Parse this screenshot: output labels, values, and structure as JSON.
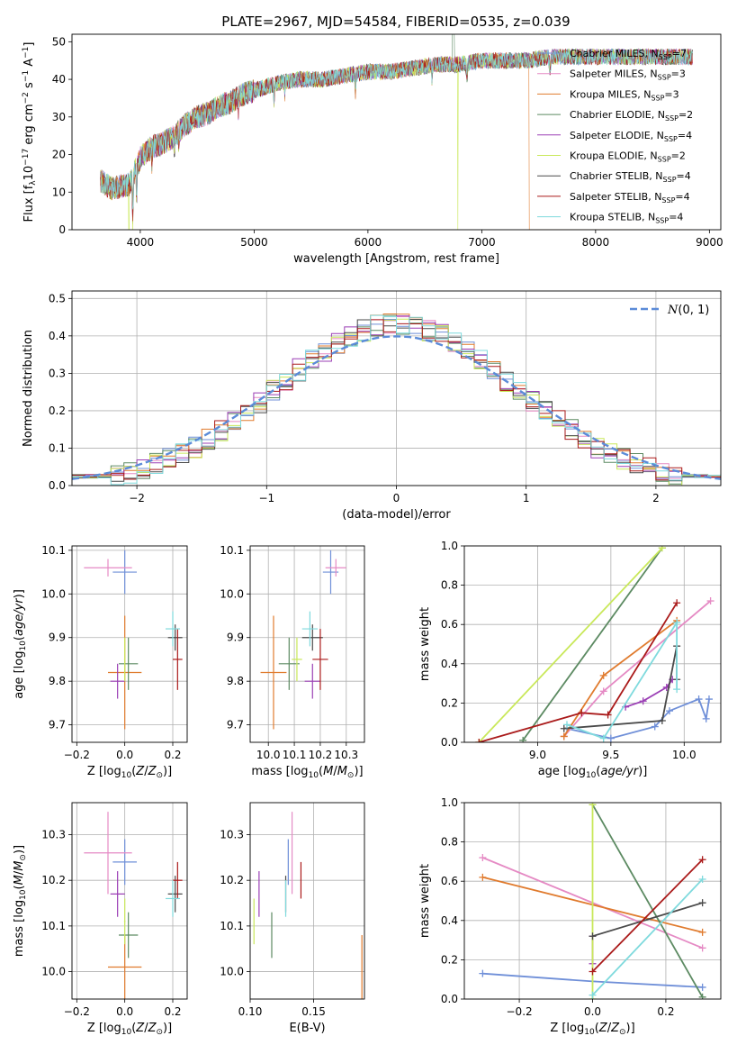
{
  "figure": {
    "title": "PLATE=2967, MJD=54584, FIBERID=0535, z=0.039",
    "colors": [
      "#6f8fd8",
      "#e58ac4",
      "#e07b2e",
      "#5c8a62",
      "#9b3fb5",
      "#c9e85a",
      "#4a4a4a",
      "#aa1a1a",
      "#7fdadd"
    ]
  },
  "models": [
    {
      "name": "Chabrier MILES, N",
      "sub": "SSP",
      "eq": "=7",
      "color": "#6f8fd8"
    },
    {
      "name": "Salpeter MILES, N",
      "sub": "SSP",
      "eq": "=3",
      "color": "#e58ac4"
    },
    {
      "name": "Kroupa MILES, N",
      "sub": "SSP",
      "eq": "=3",
      "color": "#e07b2e"
    },
    {
      "name": "Chabrier ELODIE, N",
      "sub": "SSP",
      "eq": "=2",
      "color": "#5c8a62"
    },
    {
      "name": "Salpeter ELODIE, N",
      "sub": "SSP",
      "eq": "=4",
      "color": "#9b3fb5"
    },
    {
      "name": "Kroupa ELODIE, N",
      "sub": "SSP",
      "eq": "=2",
      "color": "#c9e85a"
    },
    {
      "name": "Chabrier STELIB, N",
      "sub": "SSP",
      "eq": "=4",
      "color": "#4a4a4a"
    },
    {
      "name": "Salpeter STELIB, N",
      "sub": "SSP",
      "eq": "=4",
      "color": "#aa1a1a"
    },
    {
      "name": "Kroupa STELIB, N",
      "sub": "SSP",
      "eq": "=4",
      "color": "#7fdadd"
    }
  ],
  "chart_data": [
    {
      "id": "spectrum",
      "type": "line",
      "xlabel": "wavelength [Angstrom, rest frame]",
      "ylabel": "Flux [f_λ10^-17 erg cm^-2 s^-1 A^-1]",
      "xlim": [
        3400,
        9100
      ],
      "ylim": [
        0,
        52
      ],
      "xticks": [
        4000,
        5000,
        6000,
        7000,
        8000,
        9000
      ],
      "yticks": [
        0,
        10,
        20,
        30,
        40,
        50
      ],
      "legend": "right",
      "grid": false,
      "continuum": {
        "x": [
          3650,
          3750,
          3900,
          4000,
          4100,
          4200,
          4300,
          4400,
          4500,
          4600,
          4700,
          4800,
          4900,
          5000,
          5200,
          5400,
          5600,
          5800,
          6000,
          6200,
          6400,
          6600,
          6800,
          7000,
          7200,
          7400,
          7600,
          7800,
          8000,
          8200,
          8400,
          8600,
          8850
        ],
        "y": [
          13,
          11,
          12,
          19,
          22,
          23,
          25,
          28,
          30,
          31,
          33,
          34,
          36,
          37,
          39,
          40,
          40,
          41,
          42,
          42,
          43,
          44,
          44,
          45,
          45,
          45,
          46,
          46,
          46,
          46,
          46,
          46,
          46
        ]
      },
      "x_range": [
        3650,
        8850
      ],
      "drops": [
        {
          "series": 5,
          "x": 3900
        },
        {
          "series": 5,
          "x": 6790
        },
        {
          "series": 2,
          "x": 7420
        }
      ]
    },
    {
      "id": "residual-histogram",
      "type": "histogram",
      "xlabel": "(data-model)/error",
      "ylabel": "Normed distribution",
      "xlim": [
        -2.5,
        2.5
      ],
      "ylim": [
        0,
        0.52
      ],
      "xticks": [
        -2,
        -1,
        0,
        1,
        2
      ],
      "yticks": [
        0.0,
        0.1,
        0.2,
        0.3,
        0.4,
        0.5
      ],
      "grid": true,
      "bin_width": 0.1,
      "reference": {
        "label": "N(0,1)",
        "mean": 0,
        "sigma": 1,
        "style": "dashed",
        "color": "#5b8bd8"
      }
    },
    {
      "id": "age-vs-Z",
      "type": "errorbar",
      "xlabel": "Z [log10(Z/Z⊙)]",
      "ylabel": "age [log10(age/yr)]",
      "xlim": [
        -0.22,
        0.26
      ],
      "ylim": [
        9.66,
        10.11
      ],
      "xticks": [
        -0.2,
        0.0,
        0.2
      ],
      "yticks": [
        9.7,
        9.8,
        9.9,
        10.0,
        10.1
      ],
      "grid": true,
      "points": [
        {
          "series": 0,
          "x": 0.0,
          "xerr": 0.05,
          "y": 10.05,
          "yerr": 0.05
        },
        {
          "series": 1,
          "x": -0.07,
          "xerr": 0.1,
          "y": 10.06,
          "yerr": 0.02
        },
        {
          "series": 2,
          "x": 0.0,
          "xerr": 0.07,
          "y": 9.82,
          "yerr": 0.13
        },
        {
          "series": 3,
          "x": 0.015,
          "xerr": 0.04,
          "y": 9.84,
          "yerr": 0.06
        },
        {
          "series": 4,
          "x": -0.03,
          "xerr": 0.03,
          "y": 9.8,
          "yerr": 0.04
        },
        {
          "series": 5,
          "x": 0.0,
          "xerr": 0.003,
          "y": 9.85,
          "yerr": 0.05
        },
        {
          "series": 6,
          "x": 0.21,
          "xerr": 0.03,
          "y": 9.9,
          "yerr": 0.03
        },
        {
          "series": 7,
          "x": 0.22,
          "xerr": 0.02,
          "y": 9.85,
          "yerr": 0.07
        },
        {
          "series": 8,
          "x": 0.2,
          "xerr": 0.03,
          "y": 9.92,
          "yerr": 0.04
        }
      ]
    },
    {
      "id": "age-vs-mass",
      "type": "errorbar",
      "xlabel": "mass [log10(M/M⊙)]",
      "ylabel": "",
      "xlim": [
        9.93,
        10.37
      ],
      "ylim": [
        9.66,
        10.11
      ],
      "xticks": [
        10.0,
        10.1,
        10.2,
        10.3
      ],
      "yticks": [
        9.7,
        9.8,
        9.9,
        10.0,
        10.1
      ],
      "grid": true,
      "points": [
        {
          "series": 0,
          "x": 10.24,
          "xerr": 0.03,
          "y": 10.05,
          "yerr": 0.05
        },
        {
          "series": 1,
          "x": 10.26,
          "xerr": 0.04,
          "y": 10.06,
          "yerr": 0.02
        },
        {
          "series": 2,
          "x": 10.02,
          "xerr": 0.05,
          "y": 9.82,
          "yerr": 0.13
        },
        {
          "series": 3,
          "x": 10.08,
          "xerr": 0.04,
          "y": 9.84,
          "yerr": 0.06
        },
        {
          "series": 4,
          "x": 10.17,
          "xerr": 0.03,
          "y": 9.8,
          "yerr": 0.04
        },
        {
          "series": 5,
          "x": 10.11,
          "xerr": 0.02,
          "y": 9.85,
          "yerr": 0.05
        },
        {
          "series": 6,
          "x": 10.17,
          "xerr": 0.04,
          "y": 9.9,
          "yerr": 0.03
        },
        {
          "series": 7,
          "x": 10.2,
          "xerr": 0.03,
          "y": 9.85,
          "yerr": 0.07
        },
        {
          "series": 8,
          "x": 10.16,
          "xerr": 0.03,
          "y": 9.92,
          "yerr": 0.04
        }
      ]
    },
    {
      "id": "mass-weight-vs-age",
      "type": "line",
      "xlabel": "age [log10(age/yr)]",
      "ylabel": "mass weight",
      "xlim": [
        8.5,
        10.25
      ],
      "ylim": [
        0.0,
        1.0
      ],
      "xticks": [
        9.0,
        9.5,
        10.0
      ],
      "yticks": [
        0.0,
        0.2,
        0.4,
        0.6,
        0.8,
        1.0
      ],
      "grid": true,
      "series": [
        {
          "series": 0,
          "x": [
            9.2,
            9.5,
            9.8,
            9.9,
            10.1,
            10.15,
            10.17
          ],
          "y": [
            0.07,
            0.02,
            0.08,
            0.16,
            0.22,
            0.12,
            0.22
          ]
        },
        {
          "series": 1,
          "x": [
            9.18,
            9.45,
            10.18
          ],
          "y": [
            0.03,
            0.26,
            0.72
          ]
        },
        {
          "series": 2,
          "x": [
            9.18,
            9.45,
            9.95
          ],
          "y": [
            0.03,
            0.34,
            0.62
          ]
        },
        {
          "series": 3,
          "x": [
            8.9,
            9.85
          ],
          "y": [
            0.01,
            0.99
          ]
        },
        {
          "series": 4,
          "x": [
            9.6,
            9.72,
            9.88,
            9.92
          ],
          "y": [
            0.18,
            0.21,
            0.28,
            0.32
          ]
        },
        {
          "series": 5,
          "x": [
            8.6,
            9.85
          ],
          "y": [
            0.0,
            0.99
          ]
        },
        {
          "series": 6,
          "x": [
            9.18,
            9.85,
            9.95,
            9.95
          ],
          "y": [
            0.07,
            0.11,
            0.49,
            0.32
          ]
        },
        {
          "series": 7,
          "x": [
            8.6,
            9.3,
            9.48,
            9.95
          ],
          "y": [
            0.0,
            0.15,
            0.14,
            0.71
          ]
        },
        {
          "series": 8,
          "x": [
            9.2,
            9.45,
            9.95,
            9.95
          ],
          "y": [
            0.09,
            0.02,
            0.61,
            0.27
          ]
        }
      ]
    },
    {
      "id": "mass-vs-Z",
      "type": "errorbar",
      "xlabel": "Z [log10(Z/Z⊙)]",
      "ylabel": "mass [log10(M/M⊙)]",
      "xlim": [
        -0.22,
        0.26
      ],
      "ylim": [
        9.94,
        10.37
      ],
      "xticks": [
        -0.2,
        0.0,
        0.2
      ],
      "yticks": [
        10.0,
        10.1,
        10.2,
        10.3
      ],
      "grid": true,
      "points": [
        {
          "series": 0,
          "x": 0.0,
          "xerr": 0.05,
          "y": 10.24,
          "yerr": 0.05
        },
        {
          "series": 1,
          "x": -0.07,
          "xerr": 0.1,
          "y": 10.26,
          "yerr": 0.09
        },
        {
          "series": 2,
          "x": 0.0,
          "xerr": 0.07,
          "y": 10.01,
          "yerr": 0.07
        },
        {
          "series": 3,
          "x": 0.015,
          "xerr": 0.04,
          "y": 10.08,
          "yerr": 0.05
        },
        {
          "series": 4,
          "x": -0.03,
          "xerr": 0.03,
          "y": 10.17,
          "yerr": 0.05
        },
        {
          "series": 5,
          "x": 0.0,
          "xerr": 0.003,
          "y": 10.11,
          "yerr": 0.05
        },
        {
          "series": 6,
          "x": 0.21,
          "xerr": 0.03,
          "y": 10.17,
          "yerr": 0.04
        },
        {
          "series": 7,
          "x": 0.22,
          "xerr": 0.02,
          "y": 10.2,
          "yerr": 0.04
        },
        {
          "series": 8,
          "x": 0.2,
          "xerr": 0.03,
          "y": 10.16,
          "yerr": 0.04
        }
      ]
    },
    {
      "id": "mass-vs-EBV",
      "type": "errorbar",
      "xlabel": "E(B-V)",
      "ylabel": "",
      "xlim": [
        0.1,
        0.19
      ],
      "ylim": [
        9.94,
        10.37
      ],
      "xticks": [
        0.1,
        0.15
      ],
      "yticks": [
        10.0,
        10.1,
        10.2,
        10.3
      ],
      "grid": true,
      "points": [
        {
          "series": 0,
          "x": 0.13,
          "xerr": 0,
          "y": 10.24,
          "yerr": 0.05
        },
        {
          "series": 1,
          "x": 0.133,
          "xerr": 0,
          "y": 10.26,
          "yerr": 0.09
        },
        {
          "series": 2,
          "x": 0.188,
          "xerr": 0,
          "y": 10.01,
          "yerr": 0.07
        },
        {
          "series": 3,
          "x": 0.117,
          "xerr": 0,
          "y": 10.08,
          "yerr": 0.05
        },
        {
          "series": 4,
          "x": 0.107,
          "xerr": 0,
          "y": 10.17,
          "yerr": 0.05
        },
        {
          "series": 5,
          "x": 0.103,
          "xerr": 0,
          "y": 10.11,
          "yerr": 0.05
        },
        {
          "series": 6,
          "x": 0.128,
          "xerr": 0,
          "y": 10.17,
          "yerr": 0.04
        },
        {
          "series": 7,
          "x": 0.14,
          "xerr": 0,
          "y": 10.2,
          "yerr": 0.04
        },
        {
          "series": 8,
          "x": 0.128,
          "xerr": 0,
          "y": 10.16,
          "yerr": 0.04
        }
      ]
    },
    {
      "id": "mass-weight-vs-Z",
      "type": "line",
      "xlabel": "Z [log10(Z/Z⊙)]",
      "ylabel": "mass weight",
      "xlim": [
        -0.35,
        0.35
      ],
      "ylim": [
        0.0,
        1.0
      ],
      "xticks": [
        -0.2,
        0.0,
        0.2
      ],
      "yticks": [
        0.0,
        0.2,
        0.4,
        0.6,
        0.8,
        1.0
      ],
      "grid": true,
      "series": [
        {
          "series": 0,
          "x": [
            -0.3,
            0.0,
            0.3
          ],
          "y": [
            0.13,
            0.09,
            0.06
          ]
        },
        {
          "series": 1,
          "x": [
            -0.3,
            0.3
          ],
          "y": [
            0.72,
            0.26
          ]
        },
        {
          "series": 2,
          "x": [
            -0.3,
            0.3
          ],
          "y": [
            0.62,
            0.34
          ]
        },
        {
          "series": 3,
          "x": [
            0.0,
            0.3
          ],
          "y": [
            0.99,
            0.01
          ]
        },
        {
          "series": 4,
          "x": [
            0.0,
            0.0
          ],
          "y": [
            0.18,
            0.32
          ]
        },
        {
          "series": 5,
          "x": [
            0.0,
            0.0
          ],
          "y": [
            0.0,
            0.99
          ]
        },
        {
          "series": 6,
          "x": [
            0.0,
            0.3
          ],
          "y": [
            0.32,
            0.49
          ]
        },
        {
          "series": 7,
          "x": [
            0.0,
            0.3
          ],
          "y": [
            0.14,
            0.71
          ]
        },
        {
          "series": 8,
          "x": [
            0.0,
            0.3
          ],
          "y": [
            0.02,
            0.61
          ]
        }
      ]
    }
  ]
}
